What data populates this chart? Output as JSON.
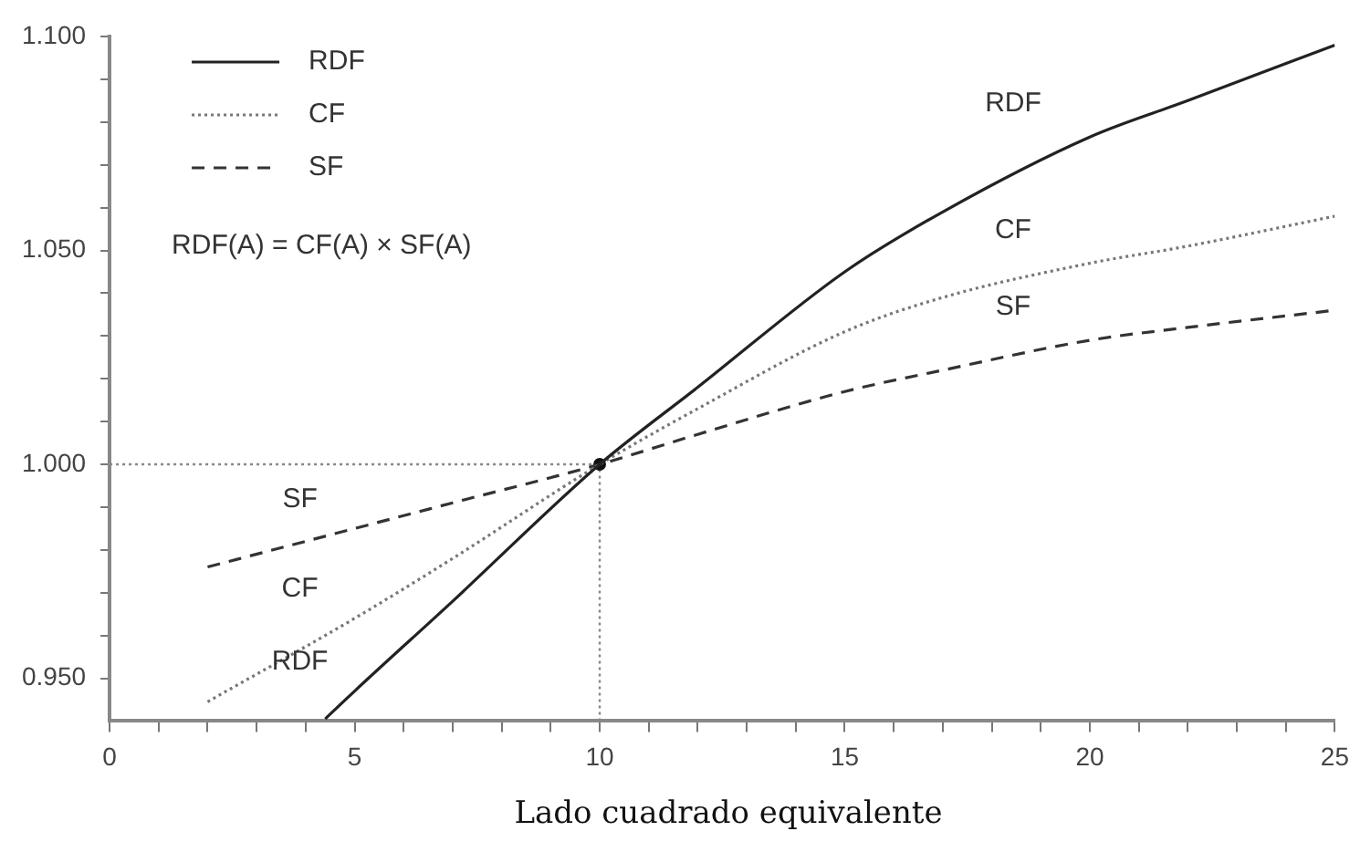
{
  "chart_data": {
    "type": "line",
    "xlabel": "Lado cuadrado equivalente",
    "legend": "top left",
    "grid": false,
    "marker": "none",
    "xlim": [
      0,
      25
    ],
    "ylim": [
      0.94,
      1.1
    ],
    "xticks": [
      0,
      {
        "value": 1,
        "label": null
      },
      {
        "value": 2,
        "label": null
      },
      {
        "value": 3,
        "label": null
      },
      {
        "value": 4,
        "label": null
      },
      5,
      {
        "value": 6,
        "label": null
      },
      {
        "value": 7,
        "label": null
      },
      {
        "value": 8,
        "label": null
      },
      {
        "value": 9,
        "label": null
      },
      10,
      {
        "value": 11,
        "label": null
      },
      {
        "value": 12,
        "label": null
      },
      {
        "value": 13,
        "label": null
      },
      {
        "value": 14,
        "label": null
      },
      15,
      {
        "value": 16,
        "label": null
      },
      {
        "value": 17,
        "label": null
      },
      {
        "value": 18,
        "label": null
      },
      {
        "value": 19,
        "label": null
      },
      20,
      {
        "value": 21,
        "label": null
      },
      {
        "value": 22,
        "label": null
      },
      {
        "value": 23,
        "label": null
      },
      {
        "value": 24,
        "label": null
      },
      25
    ],
    "yticks": [
      {
        "value": 0.95,
        "label": "0.950"
      },
      {
        "value": 0.96,
        "label": null
      },
      {
        "value": 0.97,
        "label": null
      },
      {
        "value": 0.98,
        "label": null
      },
      {
        "value": 0.99,
        "label": null
      },
      {
        "value": 1.0,
        "label": "1.000"
      },
      {
        "value": 1.01,
        "label": null
      },
      {
        "value": 1.02,
        "label": null
      },
      {
        "value": 1.03,
        "label": null
      },
      {
        "value": 1.04,
        "label": null
      },
      {
        "value": 1.05,
        "label": "1.050"
      },
      {
        "value": 1.06,
        "label": null
      },
      {
        "value": 1.07,
        "label": null
      },
      {
        "value": 1.08,
        "label": null
      },
      {
        "value": 1.09,
        "label": null
      },
      {
        "value": 1.1,
        "label": "1.100"
      }
    ],
    "series": [
      {
        "name": "RDF",
        "color": "#222222",
        "line_style": "solid",
        "x": [
          4.4,
          5,
          7,
          10,
          12,
          15,
          17,
          20,
          22,
          25
        ],
        "values": [
          0.9405,
          0.947,
          0.968,
          1.0,
          1.018,
          1.045,
          1.059,
          1.0765,
          1.085,
          1.098
        ]
      },
      {
        "name": "CF",
        "color": "#777777",
        "line_style": "dotted",
        "x": [
          2,
          5,
          7,
          10,
          12,
          15,
          17,
          20,
          22,
          25
        ],
        "values": [
          0.9445,
          0.964,
          0.978,
          1.0,
          1.013,
          1.031,
          1.039,
          1.047,
          1.051,
          1.058
        ]
      },
      {
        "name": "SF",
        "color": "#333333",
        "line_style": "dashed",
        "x": [
          2,
          5,
          7,
          10,
          12,
          15,
          17,
          20,
          22,
          25
        ],
        "values": [
          0.976,
          0.985,
          0.991,
          1.0,
          1.007,
          1.017,
          1.022,
          1.029,
          1.032,
          1.036
        ]
      },
      {
        "type": "scatter",
        "marker": "circle",
        "color": "#111111",
        "x": [
          10
        ],
        "values": [
          1.0
        ]
      }
    ],
    "ref_lines": [
      {
        "axis": "x",
        "value": 10,
        "color": "#888888",
        "line_style": "dotted"
      },
      {
        "axis": "y",
        "value": 1.0,
        "color": "#888888",
        "line_style": "dotted"
      }
    ],
    "annotations": [
      "RDF(A) = CF(A) × SF(A)"
    ]
  }
}
